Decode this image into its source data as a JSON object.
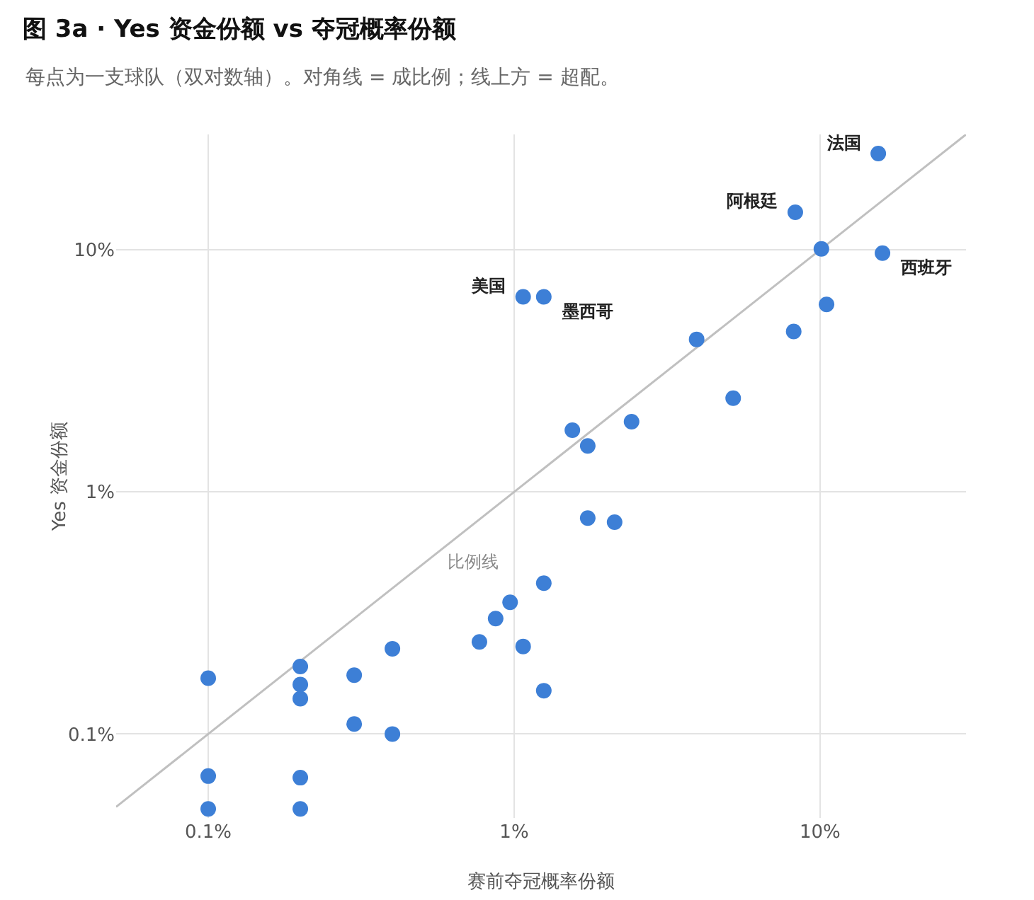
{
  "chart_data": {
    "type": "scatter",
    "title": "图 3a · Yes 资金份额 vs 夺冠概率份额",
    "subtitle": "每点为一支球队（双对数轴）。对角线 = 成比例；线上方 = 超配。",
    "xlabel": "赛前夺冠概率份额",
    "ylabel": "Yes 资金份额",
    "log": "xy",
    "grid": true,
    "legend": false,
    "xlim": [
      0.05,
      30
    ],
    "ylim": [
      0.045,
      30
    ],
    "xticks": [
      {
        "value": 0.1,
        "label": "0.1%"
      },
      {
        "value": 1,
        "label": "1%"
      },
      {
        "value": 10,
        "label": "10%"
      }
    ],
    "yticks": [
      {
        "value": 0.1,
        "label": "0.1%"
      },
      {
        "value": 1,
        "label": "1%"
      },
      {
        "value": 10,
        "label": "10%"
      }
    ],
    "series": [
      {
        "marker": "circle",
        "color": "#3d7fd6",
        "x": [
          15.5,
          8.3,
          10.1,
          16,
          1.07,
          1.25,
          10.5,
          8.2,
          3.95,
          5.2,
          2.42,
          1.55,
          1.74,
          1.74,
          2.13,
          1.25,
          0.97,
          0.87,
          0.77,
          1.07,
          0.4,
          0.3,
          1.25,
          0.2,
          0.2,
          0.2,
          0.1,
          0.3,
          0.4,
          0.1,
          0.2,
          0.1,
          0.2
        ],
        "values": [
          25,
          14.3,
          10.1,
          9.7,
          6.4,
          6.4,
          5.95,
          4.6,
          4.27,
          2.44,
          1.95,
          1.8,
          1.55,
          0.78,
          0.75,
          0.42,
          0.35,
          0.3,
          0.24,
          0.23,
          0.225,
          0.175,
          0.151,
          0.19,
          0.16,
          0.14,
          0.17,
          0.11,
          0.1,
          0.067,
          0.066,
          0.049,
          0.049
        ]
      },
      {
        "type": "line",
        "color": "#c0c0c0",
        "x": [
          0.05,
          30
        ],
        "values": [
          0.05,
          30
        ]
      }
    ],
    "annotations": [
      {
        "text": "法国",
        "x": 15.5,
        "y": 25
      },
      {
        "text": "阿根廷",
        "x": 8.3,
        "y": 14.3
      },
      {
        "text": "西班牙",
        "x": 16,
        "y": 9.7
      },
      {
        "text": "美国",
        "x": 1.07,
        "y": 6.4
      },
      {
        "text": "墨西哥",
        "x": 1.25,
        "y": 6.4
      },
      "比例线"
    ]
  }
}
